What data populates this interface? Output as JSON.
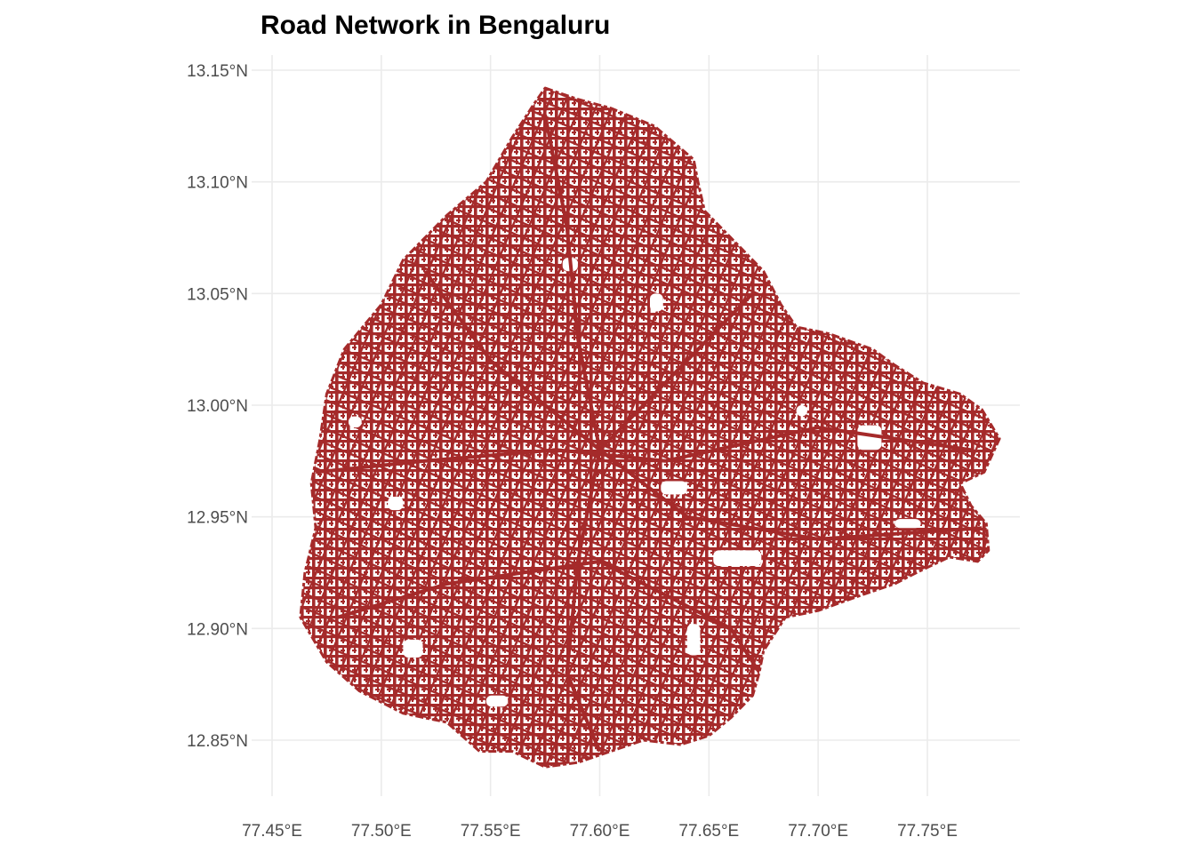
{
  "title": "Road Network in Bengaluru",
  "colors": {
    "roads": "#a52a2a",
    "grid": "#ebebeb",
    "tick_text": "#4d4d4d",
    "background": "#ffffff"
  },
  "axes": {
    "x": {
      "ticks": [
        77.45,
        77.5,
        77.55,
        77.6,
        77.65,
        77.7,
        77.75
      ],
      "labels": [
        "77.45°E",
        "77.50°E",
        "77.55°E",
        "77.60°E",
        "77.65°E",
        "77.70°E",
        "77.75°E"
      ],
      "range": [
        77.45,
        77.79
      ]
    },
    "y": {
      "ticks": [
        12.85,
        12.9,
        12.95,
        13.0,
        13.05,
        13.1,
        13.15
      ],
      "labels": [
        "12.85°N",
        "12.90°N",
        "12.95°N",
        "13.00°N",
        "13.05°N",
        "13.10°N",
        "13.15°N"
      ],
      "range": [
        12.835,
        13.15
      ]
    },
    "grid": true
  },
  "network": {
    "name": "Bengaluru",
    "outline": [
      [
        77.575,
        13.142
      ],
      [
        77.59,
        13.137
      ],
      [
        77.605,
        13.133
      ],
      [
        77.625,
        13.125
      ],
      [
        77.643,
        13.11
      ],
      [
        77.645,
        13.1
      ],
      [
        77.648,
        13.087
      ],
      [
        77.665,
        13.07
      ],
      [
        77.675,
        13.06
      ],
      [
        77.683,
        13.045
      ],
      [
        77.69,
        13.035
      ],
      [
        77.705,
        13.032
      ],
      [
        77.725,
        13.025
      ],
      [
        77.735,
        13.018
      ],
      [
        77.748,
        13.01
      ],
      [
        77.765,
        13.005
      ],
      [
        77.775,
        12.998
      ],
      [
        77.783,
        12.985
      ],
      [
        77.776,
        12.97
      ],
      [
        77.765,
        12.965
      ],
      [
        77.77,
        12.955
      ],
      [
        77.777,
        12.947
      ],
      [
        77.778,
        12.935
      ],
      [
        77.773,
        12.93
      ],
      [
        77.76,
        12.932
      ],
      [
        77.745,
        12.925
      ],
      [
        77.735,
        12.92
      ],
      [
        77.72,
        12.915
      ],
      [
        77.7,
        12.908
      ],
      [
        77.685,
        12.905
      ],
      [
        77.675,
        12.89
      ],
      [
        77.673,
        12.88
      ],
      [
        77.67,
        12.87
      ],
      [
        77.66,
        12.86
      ],
      [
        77.65,
        12.852
      ],
      [
        77.637,
        12.848
      ],
      [
        77.62,
        12.85
      ],
      [
        77.605,
        12.845
      ],
      [
        77.59,
        12.84
      ],
      [
        77.575,
        12.838
      ],
      [
        77.56,
        12.845
      ],
      [
        77.545,
        12.845
      ],
      [
        77.53,
        12.858
      ],
      [
        77.51,
        12.862
      ],
      [
        77.49,
        12.872
      ],
      [
        77.475,
        12.885
      ],
      [
        77.463,
        12.905
      ],
      [
        77.465,
        12.925
      ],
      [
        77.47,
        12.945
      ],
      [
        77.468,
        12.965
      ],
      [
        77.472,
        12.985
      ],
      [
        77.475,
        13.005
      ],
      [
        77.483,
        13.025
      ],
      [
        77.5,
        13.045
      ],
      [
        77.51,
        13.065
      ],
      [
        77.53,
        13.085
      ],
      [
        77.548,
        13.1
      ],
      [
        77.56,
        13.12
      ],
      [
        77.57,
        13.135
      ]
    ],
    "gaps": [
      [
        77.652,
        12.928,
        0.022,
        0.007
      ],
      [
        77.628,
        12.96,
        0.012,
        0.006
      ],
      [
        77.623,
        13.042,
        0.006,
        0.008
      ],
      [
        77.503,
        12.953,
        0.007,
        0.006
      ],
      [
        77.51,
        12.887,
        0.009,
        0.008
      ],
      [
        77.718,
        12.98,
        0.011,
        0.011
      ],
      [
        77.69,
        12.995,
        0.005,
        0.005
      ],
      [
        77.548,
        12.865,
        0.01,
        0.005
      ],
      [
        77.64,
        12.888,
        0.006,
        0.014
      ],
      [
        77.735,
        12.945,
        0.012,
        0.004
      ],
      [
        77.583,
        13.06,
        0.007,
        0.006
      ],
      [
        77.485,
        12.99,
        0.006,
        0.005
      ]
    ],
    "arterials": [
      [
        [
          77.575,
          13.13
        ],
        [
          77.585,
          13.08
        ],
        [
          77.59,
          13.03
        ],
        [
          77.6,
          12.98
        ]
      ],
      [
        [
          77.47,
          12.97
        ],
        [
          77.52,
          12.975
        ],
        [
          77.58,
          12.98
        ],
        [
          77.63,
          12.975
        ],
        [
          77.7,
          12.99
        ],
        [
          77.77,
          12.98
        ]
      ],
      [
        [
          77.6,
          12.98
        ],
        [
          77.64,
          12.95
        ],
        [
          77.7,
          12.94
        ],
        [
          77.775,
          12.945
        ]
      ],
      [
        [
          77.6,
          12.98
        ],
        [
          77.59,
          12.93
        ],
        [
          77.585,
          12.88
        ],
        [
          77.6,
          12.845
        ]
      ],
      [
        [
          77.6,
          12.98
        ],
        [
          77.55,
          13.02
        ],
        [
          77.52,
          13.06
        ]
      ],
      [
        [
          77.6,
          12.98
        ],
        [
          77.64,
          13.02
        ],
        [
          77.67,
          13.05
        ]
      ],
      [
        [
          77.48,
          12.905
        ],
        [
          77.53,
          12.92
        ],
        [
          77.6,
          12.93
        ],
        [
          77.66,
          12.9
        ],
        [
          77.68,
          12.87
        ]
      ]
    ]
  }
}
